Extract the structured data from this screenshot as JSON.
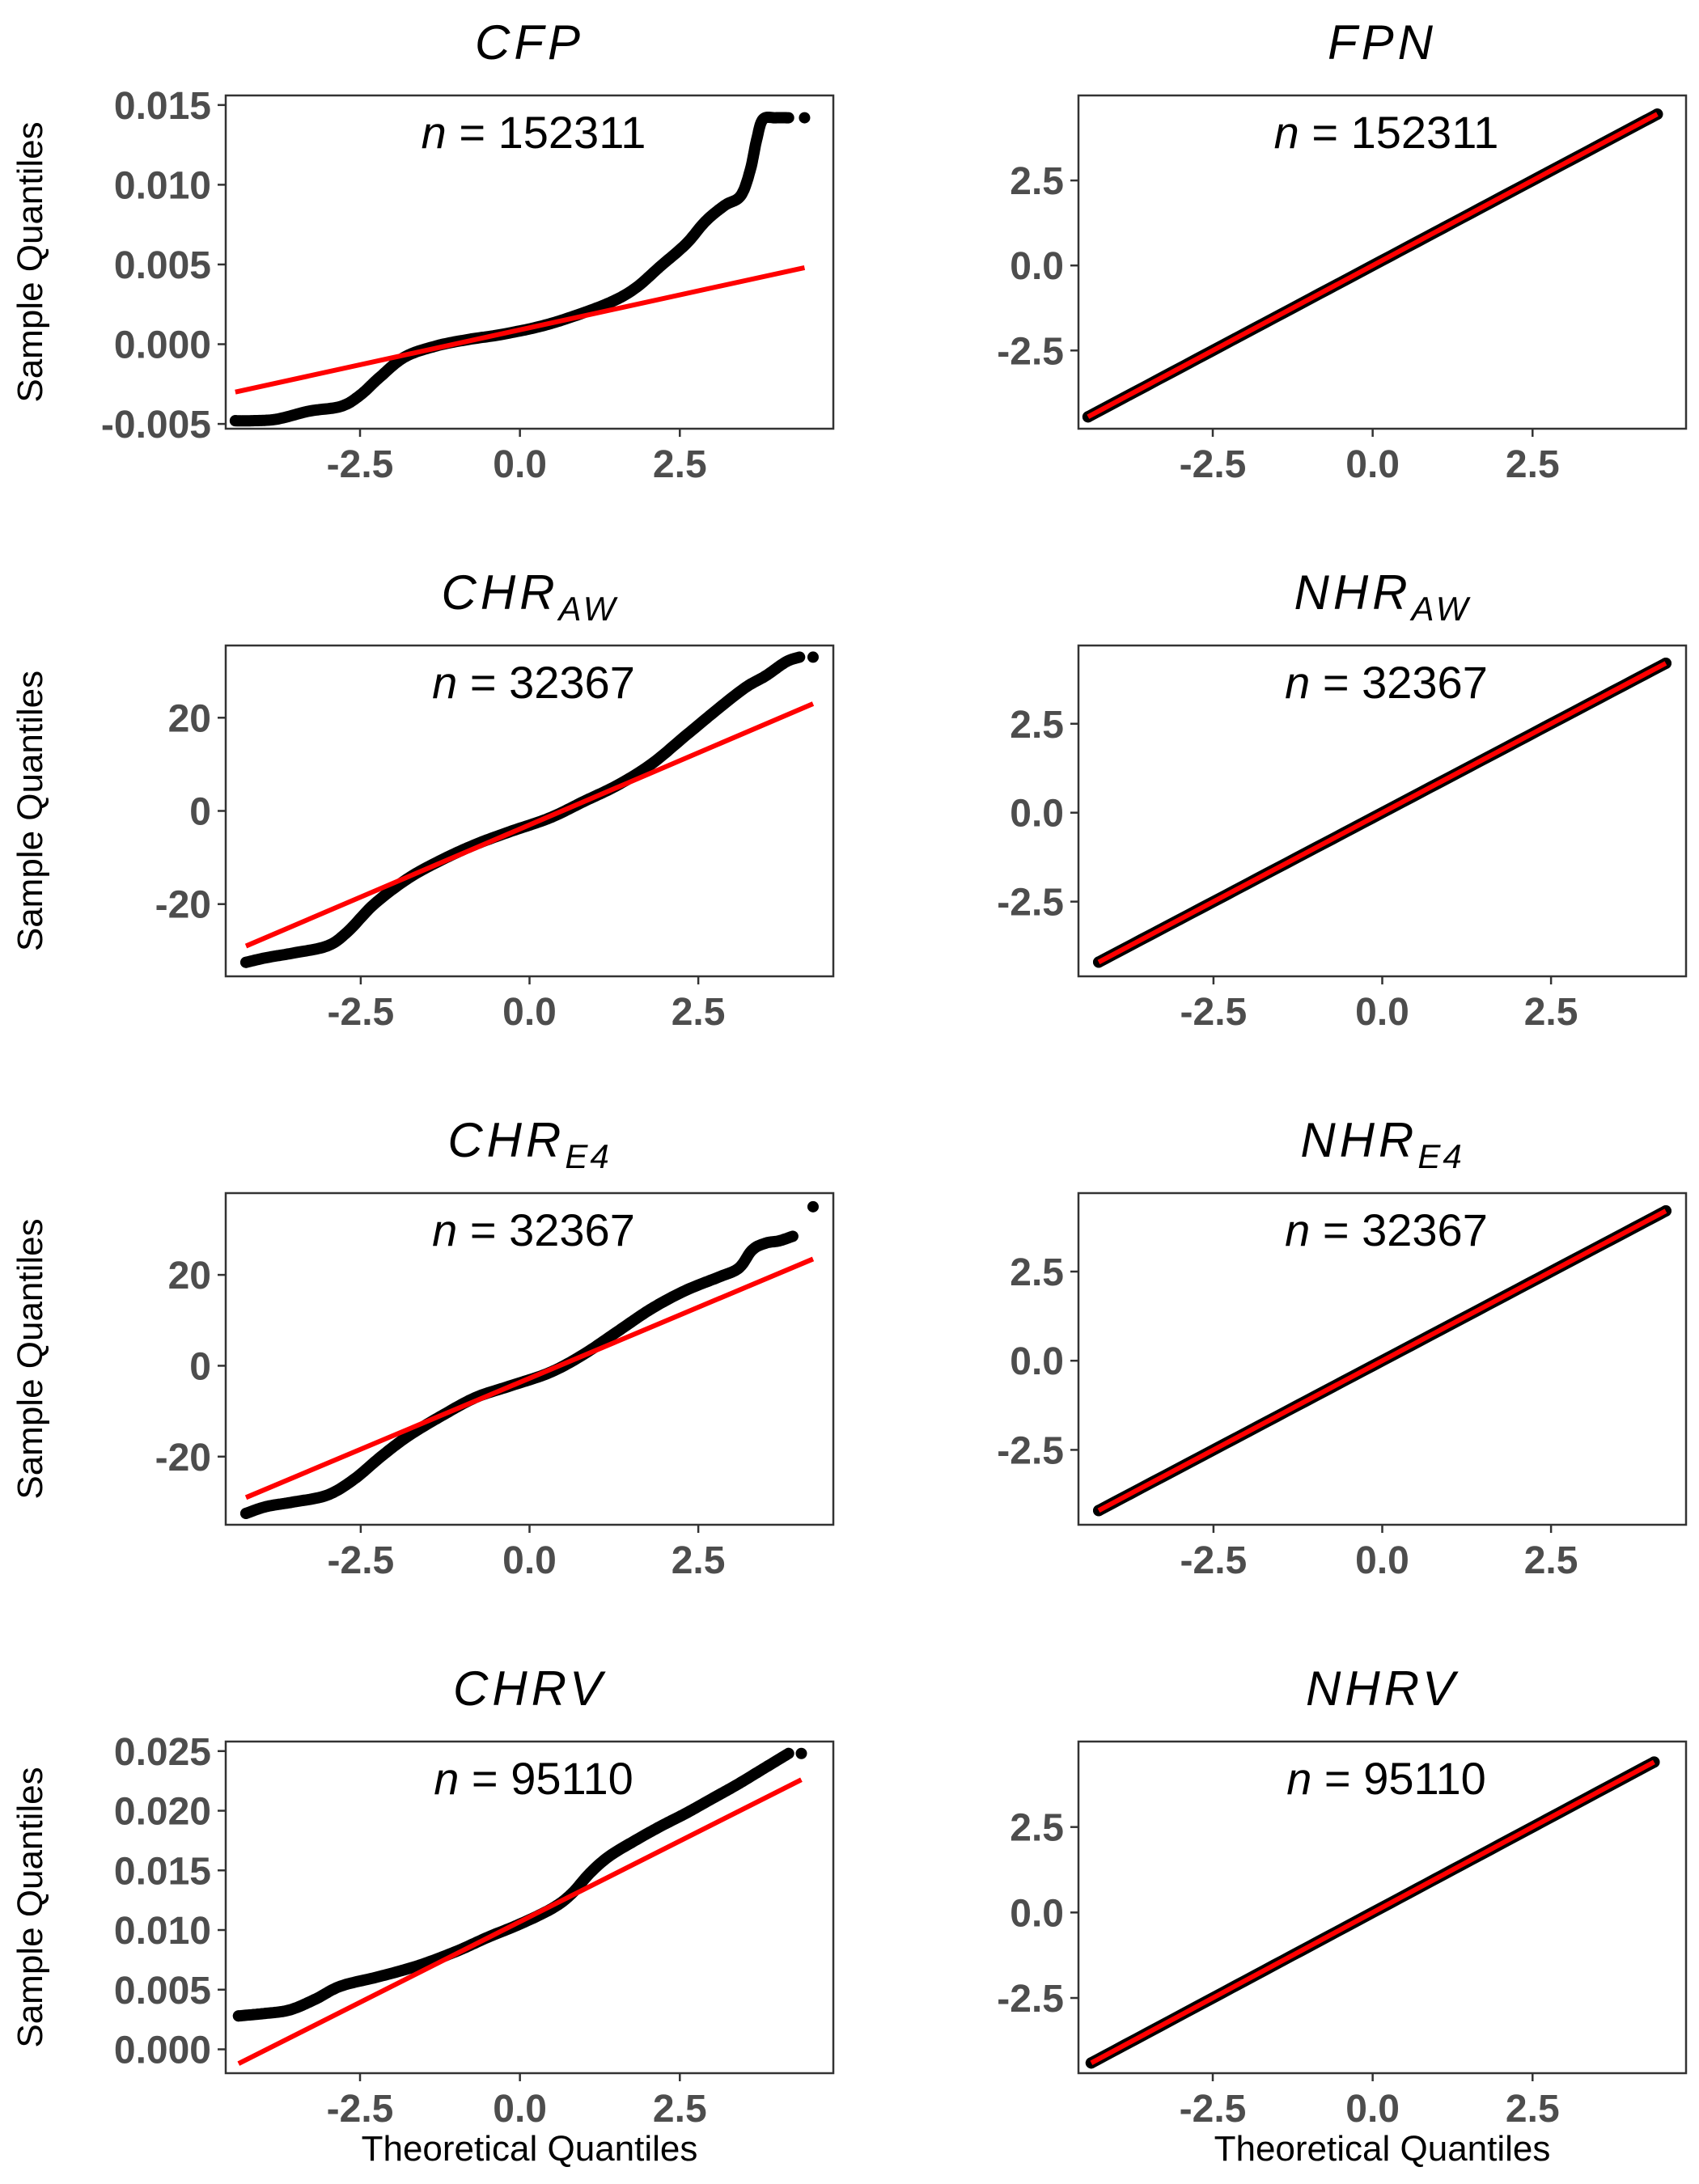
{
  "colors": {
    "points": "#000000",
    "reference_line": "#ff0000",
    "tick_text": "#4d4d4d",
    "frame": "#333333"
  },
  "axis_titles": {
    "x": "Theoretical Quantiles",
    "y": "Sample Quantiles"
  },
  "chart_data": [
    {
      "type": "scatter",
      "title": "CFP",
      "annotation": {
        "prefix": "n",
        "equals": " = ",
        "value": "152311"
      },
      "xlabel": "",
      "ylabel": "Sample Quantiles",
      "xlim": [
        -4.6,
        4.9
      ],
      "ylim": [
        -0.0053,
        0.0156
      ],
      "xticks": [
        -2.5,
        0.0,
        2.5
      ],
      "xtick_labels": [
        "-2.5",
        "0.0",
        "2.5"
      ],
      "yticks": [
        -0.005,
        0.0,
        0.005,
        0.01,
        0.015
      ],
      "ytick_labels": [
        "-0.005",
        "0.000",
        "0.005",
        "0.010",
        "0.015"
      ],
      "qq_curve": [
        [
          -4.45,
          -0.0048
        ],
        [
          -4.2,
          -0.0048
        ],
        [
          -3.8,
          -0.0047
        ],
        [
          -3.3,
          -0.0042
        ],
        [
          -2.8,
          -0.0039
        ],
        [
          -2.5,
          -0.0032
        ],
        [
          -2.2,
          -0.0021
        ],
        [
          -1.8,
          -0.0008
        ],
        [
          -1.3,
          -0.0001
        ],
        [
          -0.8,
          0.0003
        ],
        [
          -0.3,
          0.0006
        ],
        [
          0.3,
          0.0011
        ],
        [
          0.8,
          0.0017
        ],
        [
          1.4,
          0.0026
        ],
        [
          1.8,
          0.0035
        ],
        [
          2.2,
          0.0049
        ],
        [
          2.6,
          0.0063
        ],
        [
          2.9,
          0.0077
        ],
        [
          3.2,
          0.0087
        ],
        [
          3.45,
          0.0093
        ],
        [
          3.6,
          0.0109
        ],
        [
          3.7,
          0.0128
        ],
        [
          3.8,
          0.0141
        ],
        [
          4.0,
          0.0142
        ],
        [
          4.2,
          0.0142
        ]
      ],
      "qq_extremes": [
        [
          -4.45,
          -0.0048
        ],
        [
          4.45,
          0.0142
        ]
      ],
      "reference_line": [
        [
          -4.45,
          -0.003
        ],
        [
          4.45,
          0.0048
        ]
      ]
    },
    {
      "type": "scatter",
      "title": "FPN",
      "annotation": {
        "prefix": "n",
        "equals": " = ",
        "value": "152311"
      },
      "xlabel": "",
      "ylabel": "",
      "xlim": [
        -4.6,
        4.9
      ],
      "ylim": [
        -4.8,
        5.0
      ],
      "xticks": [
        -2.5,
        0.0,
        2.5
      ],
      "xtick_labels": [
        "-2.5",
        "0.0",
        "2.5"
      ],
      "yticks": [
        -2.5,
        0.0,
        2.5
      ],
      "ytick_labels": [
        "-2.5",
        "0.0",
        "2.5"
      ],
      "qq_curve": [
        [
          -4.45,
          -4.45
        ],
        [
          -2.0,
          -2.0
        ],
        [
          0.0,
          0.0
        ],
        [
          2.0,
          2.0
        ],
        [
          4.45,
          4.45
        ]
      ],
      "qq_extremes": [
        [
          -4.45,
          -4.45
        ],
        [
          4.45,
          4.45
        ]
      ],
      "reference_line": [
        [
          -4.45,
          -4.45
        ],
        [
          4.45,
          4.45
        ]
      ]
    },
    {
      "type": "scatter",
      "title": "CHR",
      "title_sub": "AW",
      "annotation": {
        "prefix": "n",
        "equals": " = ",
        "value": "32367"
      },
      "xlabel": "",
      "ylabel": "Sample Quantiles",
      "xlim": [
        -4.5,
        4.5
      ],
      "ylim": [
        -35.5,
        35.5
      ],
      "xticks": [
        -2.5,
        0.0,
        2.5
      ],
      "xtick_labels": [
        "-2.5",
        "0.0",
        "2.5"
      ],
      "yticks": [
        -20,
        0,
        20
      ],
      "ytick_labels": [
        "-20",
        "0",
        "20"
      ],
      "qq_curve": [
        [
          -4.2,
          -32.5
        ],
        [
          -3.9,
          -31.5
        ],
        [
          -3.5,
          -30.5
        ],
        [
          -3.0,
          -29
        ],
        [
          -2.7,
          -26
        ],
        [
          -2.3,
          -20
        ],
        [
          -1.8,
          -14.5
        ],
        [
          -1.3,
          -10.5
        ],
        [
          -0.8,
          -7.2
        ],
        [
          -0.3,
          -4.5
        ],
        [
          0.3,
          -1.5
        ],
        [
          0.8,
          2
        ],
        [
          1.3,
          5.5
        ],
        [
          1.8,
          10
        ],
        [
          2.3,
          16
        ],
        [
          2.8,
          22
        ],
        [
          3.2,
          26.5
        ],
        [
          3.5,
          29
        ],
        [
          3.8,
          32
        ],
        [
          4.0,
          33
        ]
      ],
      "qq_extremes": [
        [
          -4.2,
          -32.5
        ],
        [
          4.2,
          33
        ]
      ],
      "reference_line": [
        [
          -4.2,
          -29
        ],
        [
          4.2,
          23
        ]
      ]
    },
    {
      "type": "scatter",
      "title": "NHR",
      "title_sub": "AW",
      "annotation": {
        "prefix": "n",
        "equals": " = ",
        "value": "32367"
      },
      "xlabel": "",
      "ylabel": "",
      "xlim": [
        -4.5,
        4.5
      ],
      "ylim": [
        -4.6,
        4.7
      ],
      "xticks": [
        -2.5,
        0.0,
        2.5
      ],
      "xtick_labels": [
        "-2.5",
        "0.0",
        "2.5"
      ],
      "yticks": [
        -2.5,
        0.0,
        2.5
      ],
      "ytick_labels": [
        "-2.5",
        "0.0",
        "2.5"
      ],
      "qq_curve": [
        [
          -4.2,
          -4.2
        ],
        [
          -2.0,
          -2.0
        ],
        [
          0.0,
          0.0
        ],
        [
          2.0,
          2.0
        ],
        [
          4.2,
          4.2
        ]
      ],
      "qq_extremes": [
        [
          -4.2,
          -4.2
        ],
        [
          4.2,
          4.2
        ]
      ],
      "reference_line": [
        [
          -4.2,
          -4.2
        ],
        [
          4.2,
          4.2
        ]
      ]
    },
    {
      "type": "scatter",
      "title": "CHR",
      "title_sub": "E4",
      "annotation": {
        "prefix": "n",
        "equals": " = ",
        "value": "32367"
      },
      "xlabel": "",
      "ylabel": "Sample Quantiles",
      "xlim": [
        -4.5,
        4.5
      ],
      "ylim": [
        -35.0,
        38.0
      ],
      "xticks": [
        -2.5,
        0.0,
        2.5
      ],
      "xtick_labels": [
        "-2.5",
        "0.0",
        "2.5"
      ],
      "yticks": [
        -20,
        0,
        20
      ],
      "ytick_labels": [
        "-20",
        "0",
        "20"
      ],
      "qq_curve": [
        [
          -4.2,
          -32.5
        ],
        [
          -3.9,
          -31
        ],
        [
          -3.5,
          -30
        ],
        [
          -3.0,
          -28.5
        ],
        [
          -2.6,
          -25
        ],
        [
          -2.2,
          -20
        ],
        [
          -1.8,
          -15.5
        ],
        [
          -1.3,
          -11
        ],
        [
          -0.8,
          -7
        ],
        [
          -0.3,
          -4.5
        ],
        [
          0.3,
          -1.5
        ],
        [
          0.8,
          2.5
        ],
        [
          1.3,
          7.5
        ],
        [
          1.8,
          12.5
        ],
        [
          2.3,
          16.5
        ],
        [
          2.8,
          19.5
        ],
        [
          3.1,
          21.5
        ],
        [
          3.3,
          25.5
        ],
        [
          3.5,
          27
        ],
        [
          3.7,
          27.5
        ],
        [
          3.9,
          28.5
        ]
      ],
      "qq_extremes": [
        [
          -4.2,
          -32.5
        ],
        [
          4.2,
          35
        ]
      ],
      "reference_line": [
        [
          -4.2,
          -29
        ],
        [
          4.2,
          23.5
        ]
      ]
    },
    {
      "type": "scatter",
      "title": "NHR",
      "title_sub": "E4",
      "annotation": {
        "prefix": "n",
        "equals": " = ",
        "value": "32367"
      },
      "xlabel": "",
      "ylabel": "",
      "xlim": [
        -4.5,
        4.5
      ],
      "ylim": [
        -4.6,
        4.7
      ],
      "xticks": [
        -2.5,
        0.0,
        2.5
      ],
      "xtick_labels": [
        "-2.5",
        "0.0",
        "2.5"
      ],
      "yticks": [
        -2.5,
        0.0,
        2.5
      ],
      "ytick_labels": [
        "-2.5",
        "0.0",
        "2.5"
      ],
      "qq_curve": [
        [
          -4.2,
          -4.2
        ],
        [
          -2.0,
          -2.0
        ],
        [
          0.0,
          0.0
        ],
        [
          2.0,
          2.0
        ],
        [
          4.2,
          4.2
        ]
      ],
      "qq_extremes": [
        [
          -4.2,
          -4.2
        ],
        [
          4.2,
          4.2
        ]
      ],
      "reference_line": [
        [
          -4.2,
          -4.2
        ],
        [
          4.2,
          4.2
        ]
      ]
    },
    {
      "type": "scatter",
      "title": "CHRV",
      "annotation": {
        "prefix": "n",
        "equals": " = ",
        "value": "95110"
      },
      "xlabel": "Theoretical Quantiles",
      "ylabel": "Sample Quantiles",
      "xlim": [
        -4.6,
        4.9
      ],
      "ylim": [
        -0.002,
        0.0258
      ],
      "xticks": [
        -2.5,
        0.0,
        2.5
      ],
      "xtick_labels": [
        "-2.5",
        "0.0",
        "2.5"
      ],
      "yticks": [
        0.0,
        0.005,
        0.01,
        0.015,
        0.02,
        0.025
      ],
      "ytick_labels": [
        "0.000",
        "0.005",
        "0.010",
        "0.015",
        "0.020",
        "0.025"
      ],
      "qq_curve": [
        [
          -4.4,
          0.0028
        ],
        [
          -4.0,
          0.003
        ],
        [
          -3.6,
          0.0033
        ],
        [
          -3.2,
          0.0042
        ],
        [
          -2.8,
          0.0053
        ],
        [
          -2.2,
          0.0061
        ],
        [
          -1.6,
          0.007
        ],
        [
          -1.0,
          0.0082
        ],
        [
          -0.5,
          0.0094
        ],
        [
          0.0,
          0.0105
        ],
        [
          0.5,
          0.0118
        ],
        [
          0.8,
          0.013
        ],
        [
          1.1,
          0.0148
        ],
        [
          1.4,
          0.0162
        ],
        [
          1.8,
          0.0175
        ],
        [
          2.2,
          0.0187
        ],
        [
          2.6,
          0.0198
        ],
        [
          3.0,
          0.021
        ],
        [
          3.4,
          0.0222
        ],
        [
          3.8,
          0.0235
        ],
        [
          4.2,
          0.0248
        ]
      ],
      "qq_extremes": [
        [
          -4.4,
          0.0028
        ],
        [
          4.4,
          0.0248
        ]
      ],
      "reference_line": [
        [
          -4.4,
          -0.0012
        ],
        [
          4.4,
          0.0226
        ]
      ]
    },
    {
      "type": "scatter",
      "title": "NHRV",
      "annotation": {
        "prefix": "n",
        "equals": " = ",
        "value": "95110"
      },
      "xlabel": "Theoretical Quantiles",
      "ylabel": "",
      "xlim": [
        -4.6,
        4.9
      ],
      "ylim": [
        -4.7,
        5.0
      ],
      "xticks": [
        -2.5,
        0.0,
        2.5
      ],
      "xtick_labels": [
        "-2.5",
        "0.0",
        "2.5"
      ],
      "yticks": [
        -2.5,
        0.0,
        2.5
      ],
      "ytick_labels": [
        "-2.5",
        "0.0",
        "2.5"
      ],
      "qq_curve": [
        [
          -4.4,
          -4.4
        ],
        [
          -2.0,
          -2.0
        ],
        [
          0.0,
          0.0
        ],
        [
          2.0,
          2.0
        ],
        [
          4.4,
          4.4
        ]
      ],
      "qq_extremes": [
        [
          -4.4,
          -4.4
        ],
        [
          4.4,
          4.4
        ]
      ],
      "reference_line": [
        [
          -4.4,
          -4.4
        ],
        [
          4.4,
          4.4
        ]
      ]
    }
  ]
}
